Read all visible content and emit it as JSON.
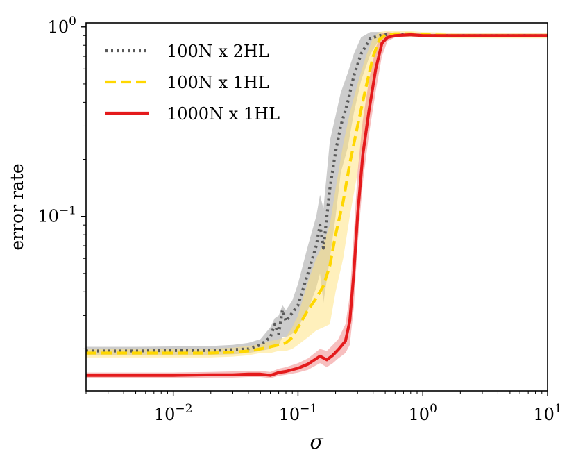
{
  "chart_data": {
    "type": "line",
    "title": "",
    "xlabel": "σ",
    "ylabel": "error rate",
    "xscale": "log",
    "yscale": "log",
    "xlim": [
      0.002,
      10
    ],
    "ylim": [
      0.012,
      1.05
    ],
    "grid": false,
    "legend_position": "top-left",
    "x_ticks": [
      {
        "value": 0.01,
        "base": "10",
        "exp": "−2"
      },
      {
        "value": 0.1,
        "base": "10",
        "exp": "−1"
      },
      {
        "value": 1,
        "base": "10",
        "exp": "0"
      },
      {
        "value": 10,
        "base": "10",
        "exp": "1"
      }
    ],
    "y_ticks": [
      {
        "value": 0.1,
        "base": "10",
        "exp": "−1"
      },
      {
        "value": 1,
        "base": "10",
        "exp": "0"
      }
    ],
    "series": [
      {
        "name": "100N x 2HL",
        "color": "#5a5a5a",
        "band_color": "#9a9a9a",
        "style": "dotted",
        "x": [
          0.002,
          0.005,
          0.01,
          0.02,
          0.03,
          0.04,
          0.05,
          0.06,
          0.065,
          0.07,
          0.075,
          0.08,
          0.09,
          0.1,
          0.12,
          0.14,
          0.15,
          0.16,
          0.18,
          0.2,
          0.22,
          0.25,
          0.28,
          0.32,
          0.38,
          0.45,
          0.5,
          0.6,
          0.8,
          1,
          2,
          5,
          10
        ],
        "values": [
          0.0195,
          0.0195,
          0.0196,
          0.0196,
          0.0198,
          0.02,
          0.021,
          0.023,
          0.027,
          0.024,
          0.032,
          0.028,
          0.031,
          0.034,
          0.05,
          0.07,
          0.09,
          0.068,
          0.14,
          0.22,
          0.3,
          0.4,
          0.55,
          0.72,
          0.87,
          0.9,
          0.91,
          0.91,
          0.91,
          0.9,
          0.9,
          0.9,
          0.9
        ],
        "lower": [
          0.0185,
          0.0185,
          0.0186,
          0.0186,
          0.0187,
          0.019,
          0.0195,
          0.02,
          0.021,
          0.021,
          0.023,
          0.023,
          0.024,
          0.026,
          0.032,
          0.042,
          0.05,
          0.035,
          0.06,
          0.1,
          0.17,
          0.23,
          0.35,
          0.52,
          0.72,
          0.86,
          0.88,
          0.89,
          0.89,
          0.88,
          0.88,
          0.88,
          0.88
        ],
        "upper": [
          0.0205,
          0.0205,
          0.0206,
          0.0207,
          0.021,
          0.0215,
          0.0225,
          0.026,
          0.029,
          0.03,
          0.034,
          0.032,
          0.036,
          0.044,
          0.07,
          0.1,
          0.13,
          0.11,
          0.25,
          0.34,
          0.45,
          0.57,
          0.72,
          0.88,
          0.94,
          0.94,
          0.93,
          0.93,
          0.93,
          0.92,
          0.92,
          0.92,
          0.92
        ]
      },
      {
        "name": "100N x 1HL",
        "color": "#ffd700",
        "band_color": "#ffe27a",
        "style": "dashed",
        "x": [
          0.002,
          0.005,
          0.01,
          0.02,
          0.03,
          0.04,
          0.05,
          0.06,
          0.07,
          0.08,
          0.09,
          0.1,
          0.12,
          0.14,
          0.16,
          0.18,
          0.2,
          0.23,
          0.26,
          0.3,
          0.35,
          0.4,
          0.45,
          0.5,
          0.6,
          0.8,
          1,
          2,
          5,
          10
        ],
        "values": [
          0.019,
          0.019,
          0.019,
          0.019,
          0.0192,
          0.0195,
          0.02,
          0.0205,
          0.021,
          0.0215,
          0.023,
          0.026,
          0.032,
          0.037,
          0.043,
          0.055,
          0.08,
          0.12,
          0.19,
          0.3,
          0.48,
          0.7,
          0.86,
          0.91,
          0.92,
          0.92,
          0.91,
          0.9,
          0.9,
          0.9
        ],
        "lower": [
          0.018,
          0.018,
          0.018,
          0.018,
          0.0182,
          0.0185,
          0.019,
          0.019,
          0.0195,
          0.0195,
          0.02,
          0.021,
          0.023,
          0.025,
          0.026,
          0.027,
          0.04,
          0.06,
          0.1,
          0.17,
          0.3,
          0.52,
          0.74,
          0.86,
          0.88,
          0.88,
          0.88,
          0.87,
          0.87,
          0.87
        ],
        "upper": [
          0.02,
          0.02,
          0.02,
          0.02,
          0.0203,
          0.0207,
          0.0212,
          0.022,
          0.0225,
          0.023,
          0.026,
          0.03,
          0.045,
          0.06,
          0.072,
          0.09,
          0.14,
          0.24,
          0.35,
          0.5,
          0.7,
          0.88,
          0.94,
          0.95,
          0.95,
          0.95,
          0.94,
          0.93,
          0.93,
          0.93
        ]
      },
      {
        "name": "1000N x 1HL",
        "color": "#e41a1c",
        "band_color": "#f08080",
        "style": "solid",
        "x": [
          0.002,
          0.005,
          0.01,
          0.02,
          0.03,
          0.04,
          0.05,
          0.06,
          0.07,
          0.08,
          0.1,
          0.12,
          0.15,
          0.17,
          0.19,
          0.21,
          0.24,
          0.26,
          0.28,
          0.3,
          0.33,
          0.37,
          0.42,
          0.47,
          0.52,
          0.6,
          0.8,
          1,
          2,
          5,
          10
        ],
        "values": [
          0.0145,
          0.0145,
          0.0145,
          0.0146,
          0.0146,
          0.0147,
          0.0147,
          0.0145,
          0.015,
          0.0152,
          0.0158,
          0.0166,
          0.0183,
          0.0175,
          0.0185,
          0.0198,
          0.022,
          0.028,
          0.05,
          0.1,
          0.21,
          0.36,
          0.6,
          0.82,
          0.88,
          0.9,
          0.91,
          0.9,
          0.9,
          0.9,
          0.9
        ],
        "lower": [
          0.014,
          0.014,
          0.014,
          0.0141,
          0.0141,
          0.0142,
          0.0142,
          0.014,
          0.0144,
          0.0146,
          0.015,
          0.0155,
          0.0168,
          0.016,
          0.0168,
          0.0178,
          0.019,
          0.021,
          0.033,
          0.07,
          0.15,
          0.27,
          0.46,
          0.7,
          0.84,
          0.88,
          0.89,
          0.88,
          0.88,
          0.88,
          0.88
        ],
        "upper": [
          0.015,
          0.015,
          0.015,
          0.0151,
          0.0152,
          0.0152,
          0.0153,
          0.0151,
          0.0157,
          0.016,
          0.0168,
          0.0178,
          0.02,
          0.0195,
          0.021,
          0.0225,
          0.027,
          0.038,
          0.08,
          0.17,
          0.32,
          0.52,
          0.78,
          0.92,
          0.94,
          0.93,
          0.93,
          0.92,
          0.92,
          0.92,
          0.92
        ]
      }
    ]
  }
}
